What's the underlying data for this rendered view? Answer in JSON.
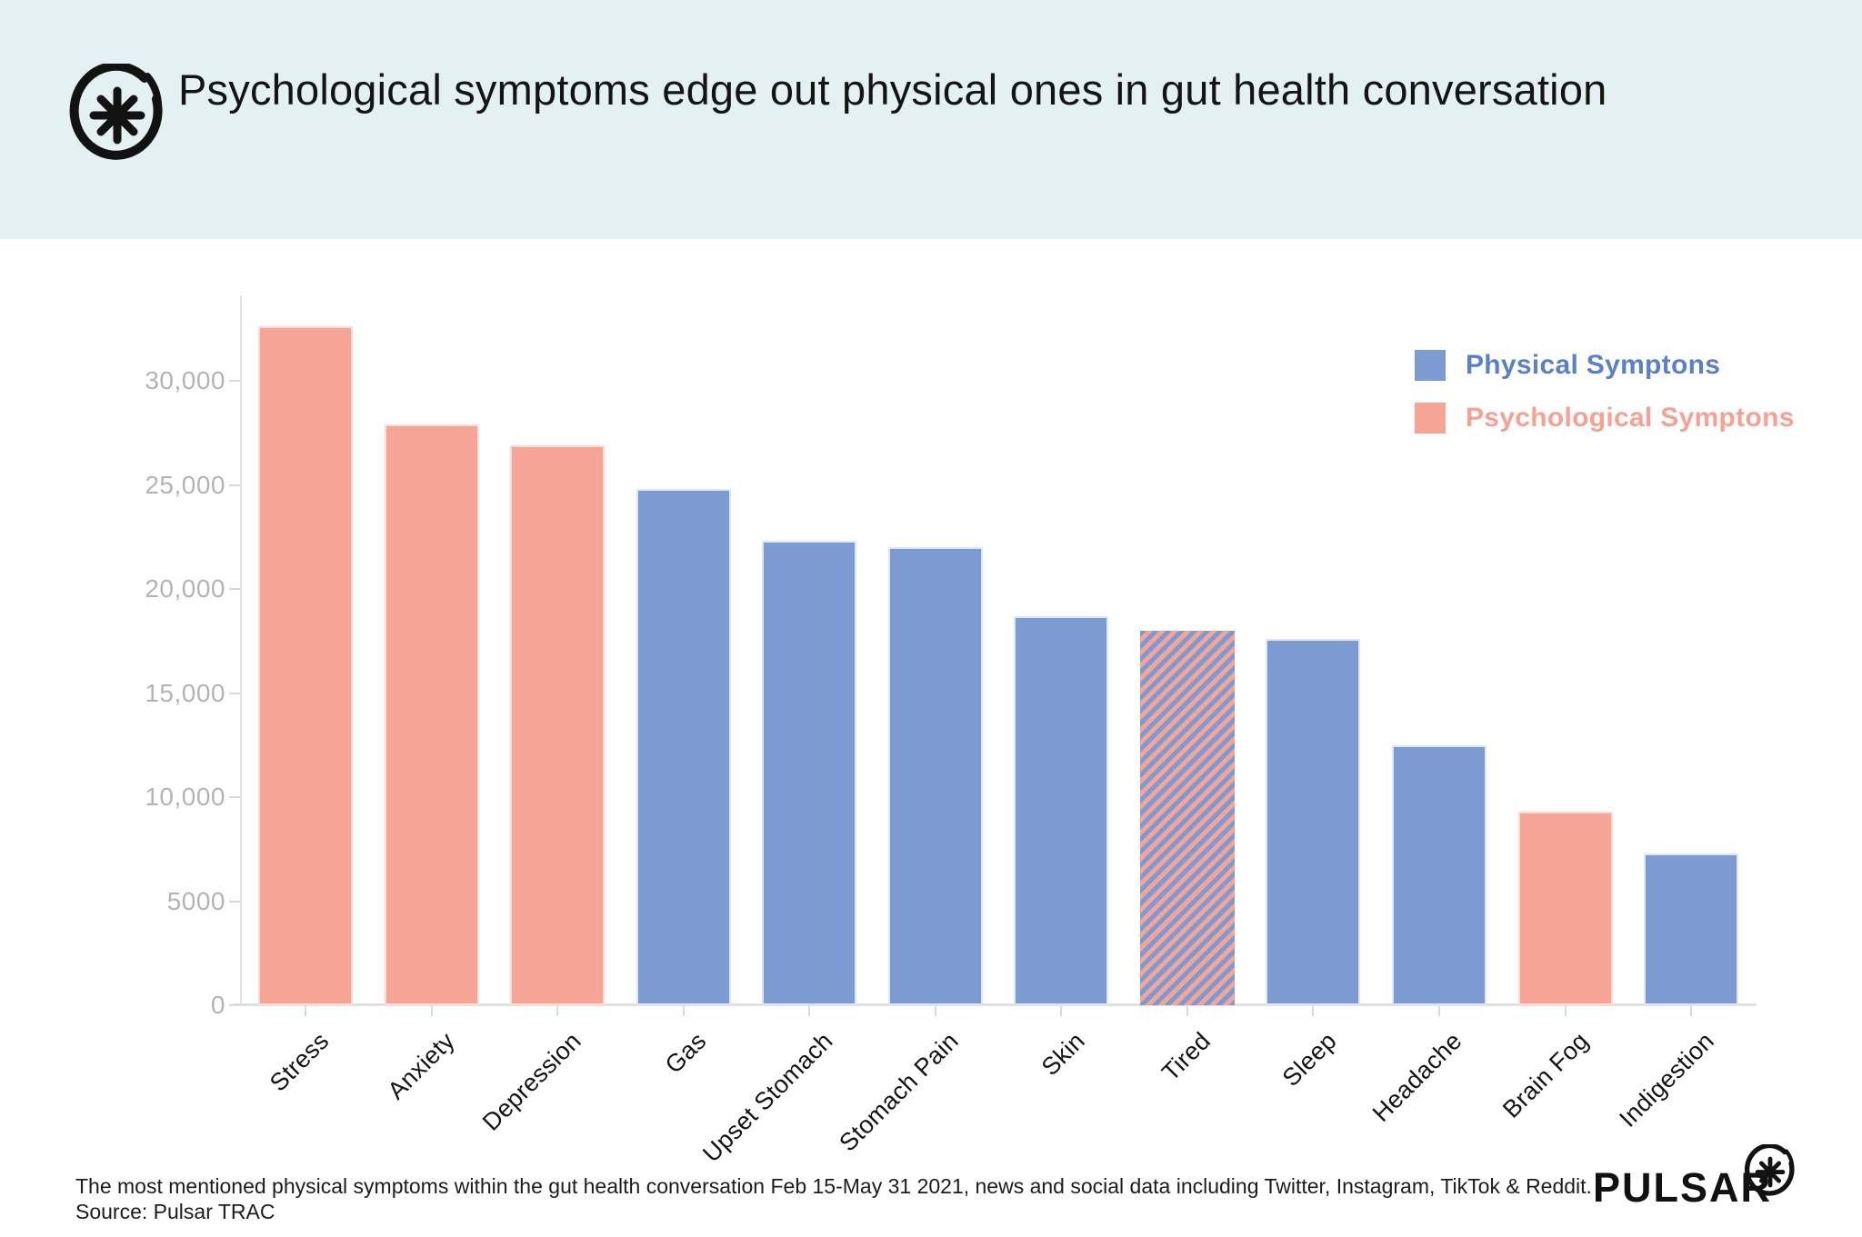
{
  "chart_data": {
    "type": "bar",
    "title": "Psychological symptoms edge out physical ones in gut health conversation",
    "categories": [
      "Stress",
      "Anxiety",
      "Depression",
      "Gas",
      "Upset Stomach",
      "Stomach Pain",
      "Skin",
      "Tired",
      "Sleep",
      "Headache",
      "Brain Fog",
      "Indigestion"
    ],
    "values": [
      32600,
      27900,
      26900,
      24800,
      22300,
      22000,
      18700,
      18000,
      17600,
      12500,
      9300,
      7300
    ],
    "series": [
      "Psychological",
      "Psychological",
      "Psychological",
      "Physical",
      "Physical",
      "Physical",
      "Physical",
      "Both",
      "Physical",
      "Physical",
      "Psychological",
      "Physical"
    ],
    "xlabel": "",
    "ylabel": "",
    "ylim": [
      0,
      34500
    ],
    "yticks": [
      0,
      5000,
      10000,
      15000,
      20000,
      25000,
      30000
    ],
    "ytick_labels": [
      "0",
      "5000",
      "10,000",
      "15,000",
      "20,000",
      "25,000",
      "30,000"
    ],
    "grid": false,
    "legend_position": "top-right",
    "legend": [
      {
        "label": "Physical Symptons",
        "color": "#7b9bd2",
        "text_color": "#5b80c6"
      },
      {
        "label": "Psychological Symptons",
        "color": "#f5a496",
        "text_color": "#f5a294"
      }
    ]
  },
  "colors": {
    "header_band": "#e4f1f3",
    "physical_bar": "#7b9bd2",
    "psychological_bar": "#f5a496",
    "physical_bar_border": "#dde6f5",
    "psychological_bar_border": "#fbddd6",
    "axis": "#e0e0e0",
    "ytick_text": "#b4b4b4"
  },
  "footer": {
    "caption_line1": "The most mentioned physical symptoms within the gut health conversation Feb 15-May 31 2021, news and social data including Twitter, Instagram, TikTok & Reddit.",
    "caption_line2": "Source: Pulsar TRAC",
    "brand": "PULSAR"
  }
}
